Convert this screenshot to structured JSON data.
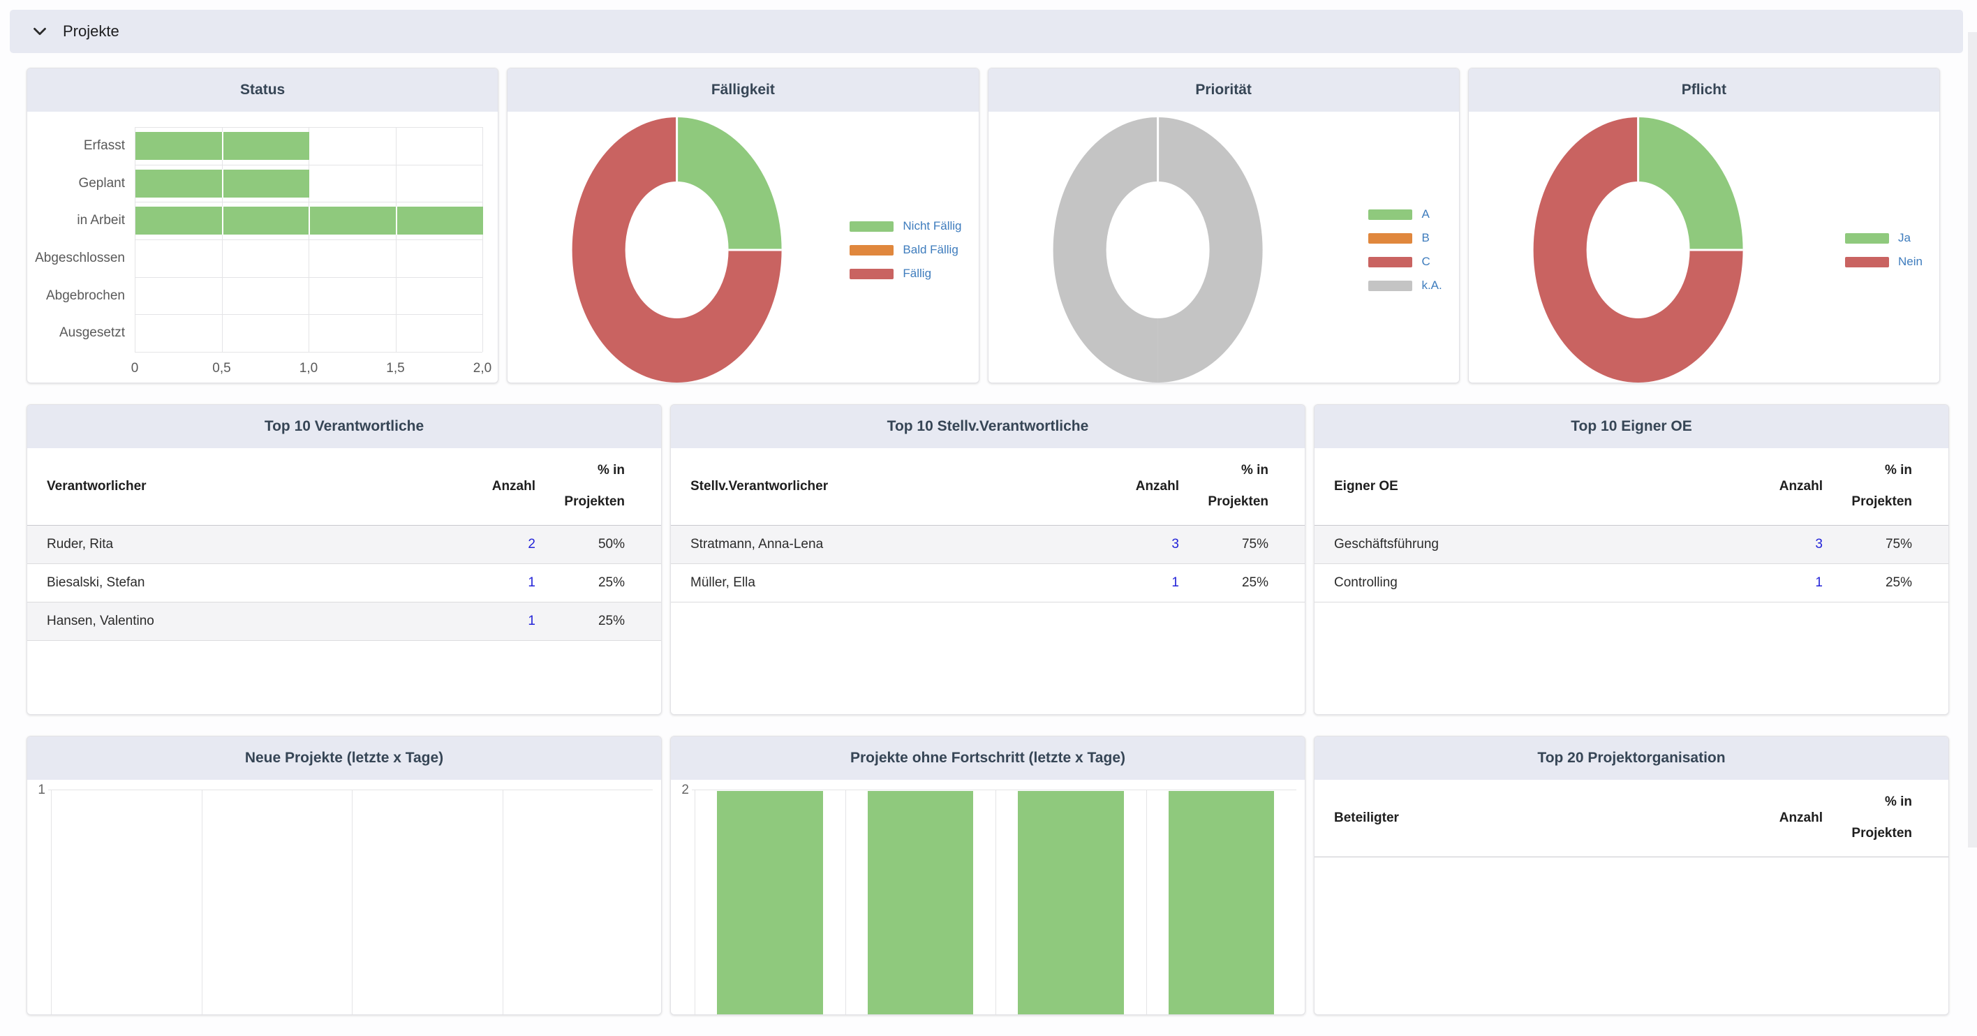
{
  "section": {
    "title": "Projekte"
  },
  "palette": {
    "green": "#8fc97d",
    "orange": "#e0873d",
    "red": "#c96361",
    "gray": "#c4c4c4",
    "legend_text": "#3e7cbd",
    "link_blue": "#2323d8",
    "header_bg": "#e7e9f2",
    "title_color": "#364555"
  },
  "status": {
    "title": "Status",
    "chart_data": {
      "type": "bar",
      "orientation": "horizontal",
      "categories": [
        "Erfasst",
        "Geplant",
        "in Arbeit",
        "Abgeschlossen",
        "Abgebrochen",
        "Ausgesetzt"
      ],
      "values": [
        1,
        1,
        2,
        0,
        0,
        0
      ],
      "xticks": [
        "0",
        "0,5",
        "1,0",
        "1,5",
        "2,0"
      ],
      "xlim": [
        0,
        2
      ],
      "bar_color": "#8fc97d",
      "grid": true
    }
  },
  "faelligkeit": {
    "title": "Fälligkeit",
    "chart_data": {
      "type": "pie",
      "donut": true,
      "legend_position": "right",
      "slices": [
        {
          "label": "Nicht Fällig",
          "value": 1,
          "color": "#8fc97d"
        },
        {
          "label": "Bald Fällig",
          "value": 0,
          "color": "#e0873d"
        },
        {
          "label": "Fällig",
          "value": 3,
          "color": "#c96361"
        }
      ]
    }
  },
  "prioritaet": {
    "title": "Priorität",
    "chart_data": {
      "type": "pie",
      "donut": true,
      "legend_position": "right",
      "slices": [
        {
          "label": "A",
          "value": 0,
          "color": "#8fc97d"
        },
        {
          "label": "B",
          "value": 0,
          "color": "#e0873d"
        },
        {
          "label": "C",
          "value": 0,
          "color": "#c96361"
        },
        {
          "label": "k.A.",
          "value": 4,
          "color": "#c4c4c4"
        }
      ]
    }
  },
  "pflicht": {
    "title": "Pflicht",
    "chart_data": {
      "type": "pie",
      "donut": true,
      "legend_position": "right",
      "slices": [
        {
          "label": "Ja",
          "value": 1,
          "color": "#8fc97d"
        },
        {
          "label": "Nein",
          "value": 3,
          "color": "#c96361"
        }
      ]
    }
  },
  "top10_verantwortliche": {
    "title": "Top 10 Verantwortliche",
    "columns": {
      "name": "Verantworlicher",
      "count": "Anzahl",
      "pct_line1": "% in",
      "pct_line2": "Projekten"
    },
    "rows": [
      {
        "name": "Ruder, Rita",
        "count": "2",
        "pct": "50%"
      },
      {
        "name": "Biesalski, Stefan",
        "count": "1",
        "pct": "25%"
      },
      {
        "name": "Hansen, Valentino",
        "count": "1",
        "pct": "25%"
      }
    ]
  },
  "top10_stellv": {
    "title": "Top 10 Stellv.Verantwortliche",
    "columns": {
      "name": "Stellv.Verantworlicher",
      "count": "Anzahl",
      "pct_line1": "% in",
      "pct_line2": "Projekten"
    },
    "rows": [
      {
        "name": "Stratmann, Anna-Lena",
        "count": "3",
        "pct": "75%"
      },
      {
        "name": "Müller, Ella",
        "count": "1",
        "pct": "25%"
      }
    ]
  },
  "top10_eigner": {
    "title": "Top 10 Eigner OE",
    "columns": {
      "name": "Eigner OE",
      "count": "Anzahl",
      "pct_line1": "% in",
      "pct_line2": "Projekten"
    },
    "rows": [
      {
        "name": "Geschäftsführung",
        "count": "3",
        "pct": "75%"
      },
      {
        "name": "Controlling",
        "count": "1",
        "pct": "25%"
      }
    ]
  },
  "neue_projekte": {
    "title": "Neue Projekte (letzte x Tage)",
    "chart_data": {
      "type": "bar",
      "ymax_tick": "1",
      "ylim": [
        0,
        1
      ],
      "values": [
        0,
        0,
        0,
        0
      ],
      "bar_color": "#8fc97d"
    }
  },
  "ohne_fortschritt": {
    "title": "Projekte ohne Fortschritt (letzte x Tage)",
    "chart_data": {
      "type": "bar",
      "ymax_tick": "2",
      "ylim": [
        0,
        2
      ],
      "values": [
        2,
        2,
        2,
        2
      ],
      "bar_color": "#8fc97d"
    }
  },
  "top20_projektorg": {
    "title": "Top 20 Projektorganisation",
    "columns": {
      "name": "Beteiligter",
      "count": "Anzahl",
      "pct_line1": "% in",
      "pct_line2": "Projekten"
    },
    "rows": []
  }
}
